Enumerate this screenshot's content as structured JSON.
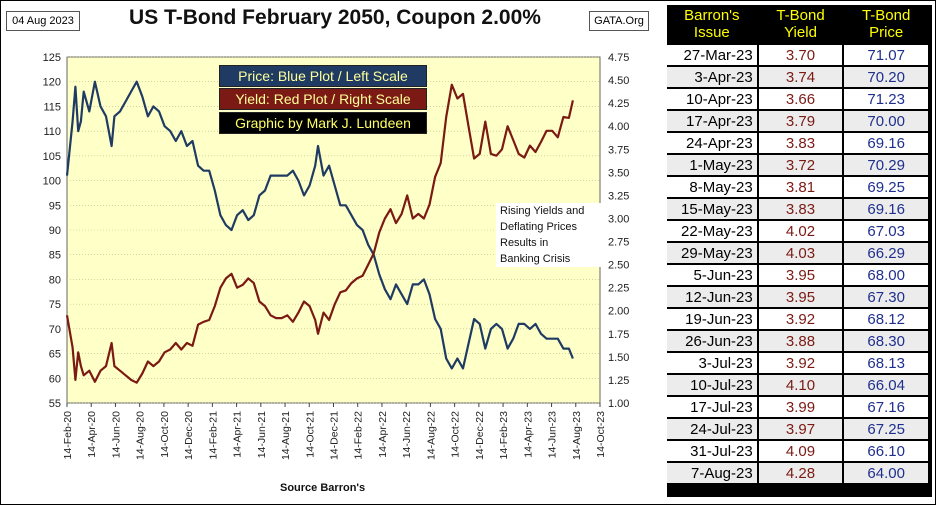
{
  "header": {
    "date_badge": "04 Aug 2023",
    "site_badge": "GATA.Org"
  },
  "legend": {
    "line1": "Price:  Blue Plot / Left Scale",
    "line2": "Yield:  Red Plot / Right Scale",
    "line3": "Graphic by Mark J. Lundeen"
  },
  "annotation": {
    "lines": [
      "Rising Yields and",
      "Deflating Prices",
      "Results in",
      "Banking Crisis"
    ]
  },
  "source_label": "Source Barron's",
  "colors": {
    "plot_bg": "#ffffc8",
    "price_line": "#1f3b64",
    "yield_line": "#7b1a14",
    "grid": "#bbbb88",
    "table_header_text": "#ffff00"
  },
  "chart_data": {
    "type": "line",
    "title": "US T-Bond February 2050, Coupon 2.00%",
    "xlabel": "Source Barron's",
    "x_ticks": [
      "14-Feb-20",
      "14-Apr-20",
      "14-Jun-20",
      "14-Aug-20",
      "14-Oct-20",
      "14-Dec-20",
      "14-Feb-21",
      "14-Apr-21",
      "14-Jun-21",
      "14-Aug-21",
      "14-Oct-21",
      "14-Dec-21",
      "14-Feb-22",
      "14-Apr-22",
      "14-Jun-22",
      "14-Aug-22",
      "14-Oct-22",
      "14-Dec-22",
      "14-Feb-23",
      "14-Apr-23",
      "14-Jun-23",
      "14-Aug-23",
      "14-Oct-23"
    ],
    "x_range": [
      "2020-02-14",
      "2023-10-14"
    ],
    "y_left": {
      "label": "Price",
      "range": [
        55,
        125
      ],
      "ticks": [
        55,
        60,
        65,
        70,
        75,
        80,
        85,
        90,
        95,
        100,
        105,
        110,
        115,
        120,
        125
      ]
    },
    "y_right": {
      "label": "Yield",
      "range": [
        1.0,
        4.75
      ],
      "ticks": [
        "1.00",
        "1.25",
        "1.50",
        "1.75",
        "2.00",
        "2.25",
        "2.50",
        "2.75",
        "3.00",
        "3.25",
        "3.50",
        "3.75",
        "4.00",
        "4.25",
        "4.50",
        "4.75"
      ]
    },
    "grid": "horizontal",
    "series": [
      {
        "name": "Price",
        "axis": "left",
        "points": [
          [
            "2020-02-14",
            101
          ],
          [
            "2020-02-28",
            112
          ],
          [
            "2020-03-06",
            119
          ],
          [
            "2020-03-13",
            110
          ],
          [
            "2020-03-20",
            112
          ],
          [
            "2020-03-27",
            118
          ],
          [
            "2020-04-10",
            114
          ],
          [
            "2020-04-24",
            120
          ],
          [
            "2020-05-08",
            115
          ],
          [
            "2020-05-22",
            113
          ],
          [
            "2020-06-05",
            107
          ],
          [
            "2020-06-12",
            113
          ],
          [
            "2020-06-26",
            114
          ],
          [
            "2020-07-10",
            116
          ],
          [
            "2020-07-24",
            118
          ],
          [
            "2020-08-07",
            120
          ],
          [
            "2020-08-21",
            117
          ],
          [
            "2020-09-04",
            113
          ],
          [
            "2020-09-18",
            115
          ],
          [
            "2020-10-02",
            114
          ],
          [
            "2020-10-16",
            111
          ],
          [
            "2020-10-30",
            110
          ],
          [
            "2020-11-13",
            108
          ],
          [
            "2020-11-27",
            110
          ],
          [
            "2020-12-11",
            107
          ],
          [
            "2020-12-25",
            108
          ],
          [
            "2021-01-08",
            103
          ],
          [
            "2021-01-22",
            102
          ],
          [
            "2021-02-05",
            102
          ],
          [
            "2021-02-19",
            98
          ],
          [
            "2021-03-05",
            93
          ],
          [
            "2021-03-19",
            91
          ],
          [
            "2021-04-02",
            90
          ],
          [
            "2021-04-16",
            93
          ],
          [
            "2021-04-30",
            94
          ],
          [
            "2021-05-14",
            92
          ],
          [
            "2021-05-28",
            93
          ],
          [
            "2021-06-11",
            97
          ],
          [
            "2021-06-25",
            98
          ],
          [
            "2021-07-09",
            101
          ],
          [
            "2021-07-23",
            101
          ],
          [
            "2021-08-06",
            101
          ],
          [
            "2021-08-20",
            101
          ],
          [
            "2021-09-03",
            102
          ],
          [
            "2021-09-17",
            100
          ],
          [
            "2021-10-01",
            97
          ],
          [
            "2021-10-15",
            99
          ],
          [
            "2021-10-29",
            103
          ],
          [
            "2021-11-05",
            107
          ],
          [
            "2021-11-19",
            101
          ],
          [
            "2021-12-03",
            103
          ],
          [
            "2021-12-17",
            99
          ],
          [
            "2021-12-31",
            95
          ],
          [
            "2022-01-14",
            95
          ],
          [
            "2022-01-28",
            93
          ],
          [
            "2022-02-11",
            91
          ],
          [
            "2022-02-25",
            90
          ],
          [
            "2022-03-11",
            87
          ],
          [
            "2022-03-25",
            85
          ],
          [
            "2022-04-08",
            81
          ],
          [
            "2022-04-22",
            78
          ],
          [
            "2022-05-06",
            76
          ],
          [
            "2022-05-20",
            79
          ],
          [
            "2022-06-03",
            77
          ],
          [
            "2022-06-17",
            75
          ],
          [
            "2022-07-01",
            79
          ],
          [
            "2022-07-15",
            79
          ],
          [
            "2022-07-29",
            80
          ],
          [
            "2022-08-12",
            77
          ],
          [
            "2022-08-26",
            72
          ],
          [
            "2022-09-09",
            70
          ],
          [
            "2022-09-23",
            64
          ],
          [
            "2022-10-07",
            62
          ],
          [
            "2022-10-21",
            64
          ],
          [
            "2022-11-04",
            62
          ],
          [
            "2022-11-18",
            67
          ],
          [
            "2022-12-02",
            72
          ],
          [
            "2022-12-16",
            71
          ],
          [
            "2022-12-30",
            66
          ],
          [
            "2023-01-13",
            70
          ],
          [
            "2023-01-27",
            71
          ],
          [
            "2023-02-10",
            70
          ],
          [
            "2023-02-24",
            66
          ],
          [
            "2023-03-10",
            68
          ],
          [
            "2023-03-24",
            71
          ],
          [
            "2023-04-07",
            71
          ],
          [
            "2023-04-21",
            70
          ],
          [
            "2023-05-05",
            71
          ],
          [
            "2023-05-19",
            69
          ],
          [
            "2023-06-02",
            68
          ],
          [
            "2023-06-16",
            68
          ],
          [
            "2023-06-30",
            68
          ],
          [
            "2023-07-14",
            66
          ],
          [
            "2023-07-28",
            66
          ],
          [
            "2023-08-07",
            64
          ]
        ]
      },
      {
        "name": "Yield",
        "axis": "right",
        "points": [
          [
            "2020-02-14",
            1.95
          ],
          [
            "2020-02-28",
            1.6
          ],
          [
            "2020-03-06",
            1.25
          ],
          [
            "2020-03-13",
            1.55
          ],
          [
            "2020-03-20",
            1.4
          ],
          [
            "2020-03-27",
            1.3
          ],
          [
            "2020-04-10",
            1.35
          ],
          [
            "2020-04-24",
            1.23
          ],
          [
            "2020-05-08",
            1.35
          ],
          [
            "2020-05-22",
            1.4
          ],
          [
            "2020-06-05",
            1.65
          ],
          [
            "2020-06-12",
            1.4
          ],
          [
            "2020-06-26",
            1.35
          ],
          [
            "2020-07-10",
            1.3
          ],
          [
            "2020-07-24",
            1.25
          ],
          [
            "2020-08-07",
            1.22
          ],
          [
            "2020-08-21",
            1.32
          ],
          [
            "2020-09-04",
            1.45
          ],
          [
            "2020-09-18",
            1.4
          ],
          [
            "2020-10-02",
            1.45
          ],
          [
            "2020-10-16",
            1.55
          ],
          [
            "2020-10-30",
            1.58
          ],
          [
            "2020-11-13",
            1.65
          ],
          [
            "2020-11-27",
            1.58
          ],
          [
            "2020-12-11",
            1.65
          ],
          [
            "2020-12-25",
            1.62
          ],
          [
            "2021-01-08",
            1.85
          ],
          [
            "2021-01-22",
            1.88
          ],
          [
            "2021-02-05",
            1.9
          ],
          [
            "2021-02-19",
            2.05
          ],
          [
            "2021-03-05",
            2.25
          ],
          [
            "2021-03-19",
            2.35
          ],
          [
            "2021-04-02",
            2.4
          ],
          [
            "2021-04-16",
            2.25
          ],
          [
            "2021-04-30",
            2.28
          ],
          [
            "2021-05-14",
            2.35
          ],
          [
            "2021-05-28",
            2.3
          ],
          [
            "2021-06-11",
            2.1
          ],
          [
            "2021-06-25",
            2.05
          ],
          [
            "2021-07-09",
            1.95
          ],
          [
            "2021-07-23",
            1.92
          ],
          [
            "2021-08-06",
            1.92
          ],
          [
            "2021-08-20",
            1.95
          ],
          [
            "2021-09-03",
            1.88
          ],
          [
            "2021-09-17",
            1.98
          ],
          [
            "2021-10-01",
            2.1
          ],
          [
            "2021-10-15",
            2.05
          ],
          [
            "2021-10-29",
            1.9
          ],
          [
            "2021-11-05",
            1.75
          ],
          [
            "2021-11-19",
            1.98
          ],
          [
            "2021-12-03",
            1.9
          ],
          [
            "2021-12-17",
            2.07
          ],
          [
            "2021-12-31",
            2.2
          ],
          [
            "2022-01-14",
            2.22
          ],
          [
            "2022-01-28",
            2.3
          ],
          [
            "2022-02-11",
            2.35
          ],
          [
            "2022-02-25",
            2.38
          ],
          [
            "2022-03-11",
            2.5
          ],
          [
            "2022-03-25",
            2.62
          ],
          [
            "2022-04-08",
            2.85
          ],
          [
            "2022-04-22",
            3.0
          ],
          [
            "2022-05-06",
            3.1
          ],
          [
            "2022-05-20",
            2.95
          ],
          [
            "2022-06-03",
            3.05
          ],
          [
            "2022-06-17",
            3.25
          ],
          [
            "2022-07-01",
            3.0
          ],
          [
            "2022-07-15",
            3.05
          ],
          [
            "2022-07-29",
            3.0
          ],
          [
            "2022-08-12",
            3.15
          ],
          [
            "2022-08-26",
            3.45
          ],
          [
            "2022-09-09",
            3.6
          ],
          [
            "2022-09-23",
            4.1
          ],
          [
            "2022-10-07",
            4.45
          ],
          [
            "2022-10-21",
            4.3
          ],
          [
            "2022-11-04",
            4.35
          ],
          [
            "2022-11-18",
            4.0
          ],
          [
            "2022-12-02",
            3.65
          ],
          [
            "2022-12-16",
            3.7
          ],
          [
            "2022-12-30",
            4.05
          ],
          [
            "2023-01-13",
            3.7
          ],
          [
            "2023-01-27",
            3.68
          ],
          [
            "2023-02-10",
            3.75
          ],
          [
            "2023-02-24",
            4.0
          ],
          [
            "2023-03-10",
            3.85
          ],
          [
            "2023-03-24",
            3.7
          ],
          [
            "2023-04-07",
            3.66
          ],
          [
            "2023-04-21",
            3.79
          ],
          [
            "2023-05-05",
            3.72
          ],
          [
            "2023-05-19",
            3.83
          ],
          [
            "2023-06-02",
            3.95
          ],
          [
            "2023-06-16",
            3.95
          ],
          [
            "2023-06-30",
            3.88
          ],
          [
            "2023-07-14",
            4.1
          ],
          [
            "2023-07-28",
            4.09
          ],
          [
            "2023-08-07",
            4.28
          ]
        ]
      }
    ]
  },
  "table": {
    "headers": [
      "Barron's\nIssue",
      "T-Bond\nYield",
      "T-Bond\nPrice"
    ],
    "rows": [
      [
        "27-Mar-23",
        "3.70",
        "71.07"
      ],
      [
        "3-Apr-23",
        "3.74",
        "70.20"
      ],
      [
        "10-Apr-23",
        "3.66",
        "71.23"
      ],
      [
        "17-Apr-23",
        "3.79",
        "70.00"
      ],
      [
        "24-Apr-23",
        "3.83",
        "69.16"
      ],
      [
        "1-May-23",
        "3.72",
        "70.29"
      ],
      [
        "8-May-23",
        "3.81",
        "69.25"
      ],
      [
        "15-May-23",
        "3.83",
        "69.16"
      ],
      [
        "22-May-23",
        "4.02",
        "67.03"
      ],
      [
        "29-May-23",
        "4.03",
        "66.29"
      ],
      [
        "5-Jun-23",
        "3.95",
        "68.00"
      ],
      [
        "12-Jun-23",
        "3.95",
        "67.30"
      ],
      [
        "19-Jun-23",
        "3.92",
        "68.12"
      ],
      [
        "26-Jun-23",
        "3.88",
        "68.30"
      ],
      [
        "3-Jul-23",
        "3.92",
        "68.13"
      ],
      [
        "10-Jul-23",
        "4.10",
        "66.04"
      ],
      [
        "17-Jul-23",
        "3.99",
        "67.16"
      ],
      [
        "24-Jul-23",
        "3.97",
        "67.25"
      ],
      [
        "31-Jul-23",
        "4.09",
        "66.10"
      ],
      [
        "7-Aug-23",
        "4.28",
        "64.00"
      ]
    ]
  }
}
